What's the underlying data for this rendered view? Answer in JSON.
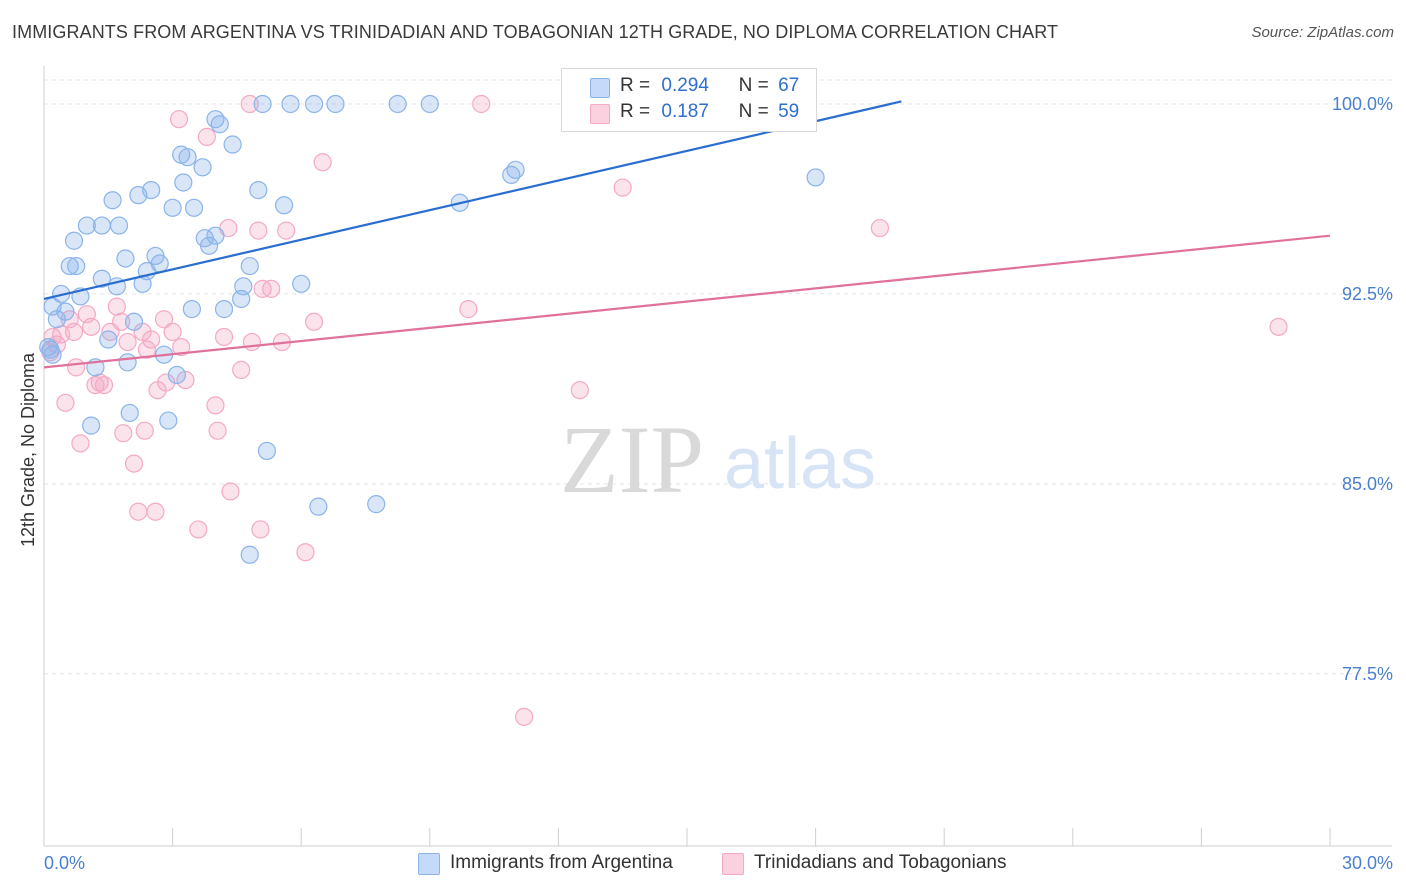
{
  "title": "IMMIGRANTS FROM ARGENTINA VS TRINIDADIAN AND TOBAGONIAN 12TH GRADE, NO DIPLOMA CORRELATION CHART",
  "source": "Source: ZipAtlas.com",
  "watermark": {
    "zip": "ZIP",
    "atlas": "atlas"
  },
  "legend_top": {
    "series1": {
      "r_label": "R =",
      "r_value": "0.294",
      "n_label": "N =",
      "n_value": "67"
    },
    "series2": {
      "r_label": "R =",
      "r_value": "0.187",
      "n_label": "N =",
      "n_value": "59"
    }
  },
  "chart_data": {
    "type": "scatter",
    "title": "IMMIGRANTS FROM ARGENTINA VS TRINIDADIAN AND TOBAGONIAN 12TH GRADE, NO DIPLOMA CORRELATION CHART",
    "xlabel": "",
    "ylabel": "12th Grade, No Diploma",
    "xlim": [
      0,
      30
    ],
    "ylim": [
      70.7,
      101.5
    ],
    "x_tick_labels": [
      "0.0%",
      "30.0%"
    ],
    "y_ticks": [
      77.5,
      85.0,
      92.5,
      100.0
    ],
    "y_tick_labels": [
      "77.5%",
      "85.0%",
      "92.5%",
      "100.0%"
    ],
    "grid": true,
    "legend_position": "bottom",
    "series": [
      {
        "name": "Immigrants from Argentina",
        "color": "#8ab4ea",
        "line_color": "#2a6dd0",
        "trend": {
          "x": [
            0,
            20.0
          ],
          "y": [
            92.3,
            100.1
          ]
        },
        "points": [
          [
            0.15,
            90.3
          ],
          [
            0.2,
            92.0
          ],
          [
            0.3,
            91.5
          ],
          [
            0.4,
            92.5
          ],
          [
            0.5,
            91.8
          ],
          [
            0.6,
            93.6
          ],
          [
            0.7,
            94.6
          ],
          [
            0.75,
            93.6
          ],
          [
            0.85,
            92.4
          ],
          [
            1.0,
            95.2
          ],
          [
            1.1,
            87.3
          ],
          [
            1.2,
            89.6
          ],
          [
            1.35,
            93.1
          ],
          [
            1.35,
            95.2
          ],
          [
            1.5,
            90.7
          ],
          [
            1.6,
            96.2
          ],
          [
            1.7,
            92.8
          ],
          [
            1.75,
            95.2
          ],
          [
            1.9,
            93.9
          ],
          [
            1.95,
            89.8
          ],
          [
            2.0,
            87.8
          ],
          [
            2.1,
            91.4
          ],
          [
            2.2,
            96.4
          ],
          [
            2.3,
            92.9
          ],
          [
            2.4,
            93.4
          ],
          [
            2.5,
            96.6
          ],
          [
            2.6,
            94.0
          ],
          [
            2.7,
            93.7
          ],
          [
            2.8,
            90.1
          ],
          [
            2.9,
            87.5
          ],
          [
            3.0,
            95.9
          ],
          [
            3.1,
            89.3
          ],
          [
            3.2,
            98.0
          ],
          [
            3.25,
            96.9
          ],
          [
            3.35,
            97.9
          ],
          [
            3.45,
            91.9
          ],
          [
            3.5,
            95.9
          ],
          [
            3.7,
            97.5
          ],
          [
            3.75,
            94.7
          ],
          [
            3.85,
            94.4
          ],
          [
            4.0,
            94.8
          ],
          [
            4.0,
            99.4
          ],
          [
            4.1,
            99.2
          ],
          [
            4.2,
            91.9
          ],
          [
            4.4,
            98.4
          ],
          [
            4.6,
            92.3
          ],
          [
            4.65,
            92.8
          ],
          [
            4.8,
            93.6
          ],
          [
            4.8,
            82.2
          ],
          [
            5.0,
            96.6
          ],
          [
            5.1,
            100.0
          ],
          [
            5.2,
            86.3
          ],
          [
            5.6,
            96.0
          ],
          [
            5.75,
            100.0
          ],
          [
            6.0,
            92.9
          ],
          [
            6.3,
            100.0
          ],
          [
            6.4,
            84.1
          ],
          [
            6.8,
            100.0
          ],
          [
            7.75,
            84.2
          ],
          [
            8.25,
            100.0
          ],
          [
            9.0,
            100.0
          ],
          [
            9.7,
            96.1
          ],
          [
            10.9,
            97.2
          ],
          [
            11.0,
            97.4
          ],
          [
            18.0,
            97.1
          ],
          [
            0.1,
            90.4
          ],
          [
            0.2,
            90.1
          ]
        ]
      },
      {
        "name": "Trinidadians and Tobagonians",
        "color": "#f4a9c4",
        "line_color": "#e0719b",
        "trend": {
          "x": [
            0,
            30.0
          ],
          "y": [
            89.6,
            94.8
          ]
        },
        "points": [
          [
            0.2,
            90.8
          ],
          [
            0.3,
            90.5
          ],
          [
            0.4,
            90.9
          ],
          [
            0.5,
            88.2
          ],
          [
            0.6,
            91.5
          ],
          [
            0.7,
            91.0
          ],
          [
            0.75,
            89.6
          ],
          [
            0.85,
            86.6
          ],
          [
            1.0,
            91.7
          ],
          [
            1.1,
            91.2
          ],
          [
            1.2,
            88.9
          ],
          [
            1.3,
            89.0
          ],
          [
            1.4,
            88.9
          ],
          [
            1.55,
            91.0
          ],
          [
            1.7,
            92.0
          ],
          [
            1.8,
            91.4
          ],
          [
            1.85,
            87.0
          ],
          [
            1.95,
            90.6
          ],
          [
            2.1,
            85.8
          ],
          [
            2.2,
            83.9
          ],
          [
            2.3,
            91.0
          ],
          [
            2.35,
            87.1
          ],
          [
            2.4,
            90.3
          ],
          [
            2.5,
            90.7
          ],
          [
            2.6,
            83.9
          ],
          [
            2.65,
            88.7
          ],
          [
            2.8,
            91.5
          ],
          [
            2.85,
            89.0
          ],
          [
            3.0,
            91.0
          ],
          [
            3.15,
            99.4
          ],
          [
            3.2,
            90.4
          ],
          [
            3.3,
            89.1
          ],
          [
            3.6,
            83.2
          ],
          [
            3.8,
            98.7
          ],
          [
            4.0,
            88.1
          ],
          [
            4.05,
            87.1
          ],
          [
            4.2,
            90.8
          ],
          [
            4.3,
            95.1
          ],
          [
            4.35,
            84.7
          ],
          [
            4.6,
            89.5
          ],
          [
            4.8,
            100.0
          ],
          [
            4.85,
            90.6
          ],
          [
            5.0,
            95.0
          ],
          [
            5.05,
            83.2
          ],
          [
            5.1,
            92.7
          ],
          [
            5.3,
            92.7
          ],
          [
            5.55,
            90.6
          ],
          [
            5.65,
            95.0
          ],
          [
            6.1,
            82.3
          ],
          [
            6.3,
            91.4
          ],
          [
            6.5,
            97.7
          ],
          [
            9.9,
            91.9
          ],
          [
            10.2,
            100.0
          ],
          [
            11.2,
            75.8
          ],
          [
            12.5,
            88.7
          ],
          [
            13.5,
            96.7
          ],
          [
            19.5,
            95.1
          ],
          [
            28.8,
            91.2
          ],
          [
            0.15,
            90.2
          ]
        ]
      }
    ]
  }
}
